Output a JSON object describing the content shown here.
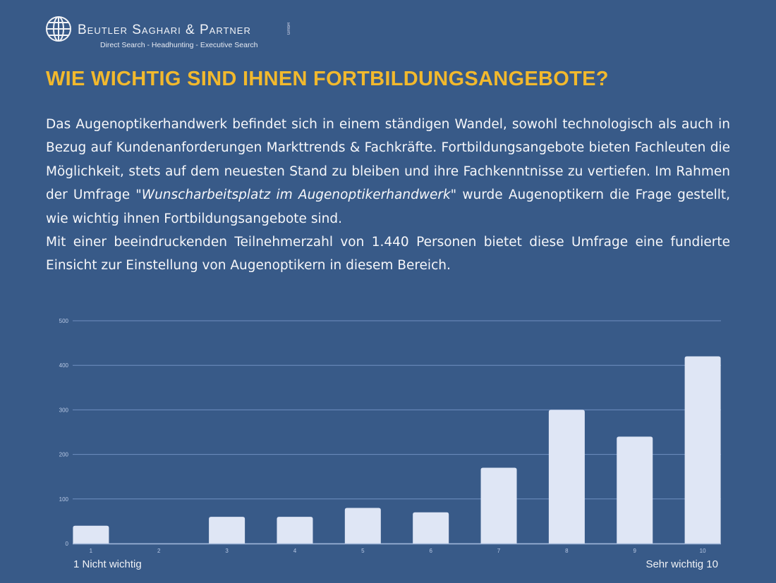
{
  "header": {
    "brand": "Beutler Saghari & Partner",
    "brand_suffix": "GmbH",
    "tagline": "Direct Search - Headhunting - Executive Search",
    "logo_icon": "globe-icon"
  },
  "title": "WIE WICHTIG SIND IHNEN FORTBILDUNGSANGEBOTE?",
  "intro": {
    "p1_before": "Das Augenoptikerhandwerk befindet sich in einem ständigen Wandel, sowohl technologisch als auch in Bezug auf Kundenanforderungen Markttrends & Fachkräfte. Fortbildungsangebote bieten Fachleuten die Möglichkeit, stets auf dem neuesten Stand zu bleiben und ihre Fachkenntnisse zu vertiefen. Im Rahmen der Umfrage ",
    "p1_survey": "\"Wunscharbeitsplatz im Augenoptikerhandwerk\"",
    "p1_after": " wurde Augenoptikern die Frage gestellt, wie wichtig ihnen Fortbildungsangebote sind.",
    "p2": "Mit einer beeindruckenden Teilnehmerzahl von 1.440 Personen bietet diese Umfrage eine fundierte Einsicht zur Einstellung von Augenoptikern in diesem Bereich."
  },
  "chart_data": {
    "type": "bar",
    "categories": [
      "1",
      "2",
      "3",
      "4",
      "5",
      "6",
      "7",
      "8",
      "9",
      "10"
    ],
    "values": [
      40,
      0,
      60,
      60,
      80,
      70,
      170,
      300,
      240,
      420
    ],
    "ylim": [
      0,
      500
    ],
    "yticks": [
      "0",
      "100",
      "200",
      "300",
      "400",
      "500"
    ],
    "grid": true,
    "xlabel_left": "1 Nicht wichtig",
    "xlabel_right": "Sehr wichtig 10",
    "bar_color": "#dfe6f5",
    "grid_color": "#6f8fc0"
  }
}
